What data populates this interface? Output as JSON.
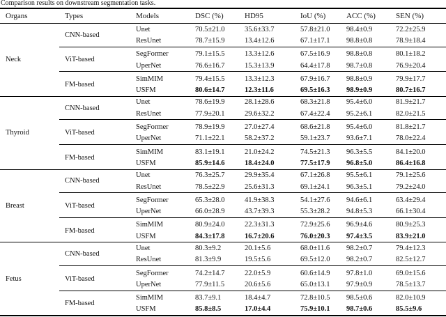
{
  "caption": "Comparison results on downstream segmentation tasks.",
  "table": {
    "headers": [
      "Organs",
      "Types",
      "Models",
      "DSC (%)",
      "HD95",
      "IoU (%)",
      "ACC (%)",
      "SEN (%)"
    ],
    "organs": [
      {
        "name": "Neck",
        "sections": [
          {
            "type": "CNN-based",
            "rows": [
              {
                "model": "Unet",
                "dsc": "70.5±21.0",
                "hd95": "35.6±33.7",
                "iou": "57.8±21.0",
                "acc": "98.4±0.9",
                "sen": "72.2±25.9"
              },
              {
                "model": "ResUnet",
                "dsc": "78.7±15.9",
                "hd95": "13.4±12.6",
                "iou": "67.1±17.1",
                "acc": "98.8±0.8",
                "sen": "78.9±18.4"
              }
            ]
          },
          {
            "type": "ViT-based",
            "rows": [
              {
                "model": "SegFormer",
                "dsc": "79.1±15.5",
                "hd95": "13.3±12.6",
                "iou": "67.5±16.9",
                "acc": "98.8±0.8",
                "sen": "80.1±18.2"
              },
              {
                "model": "UperNet",
                "dsc": "76.6±16.7",
                "hd95": "15.3±13.9",
                "iou": "64.4±17.8",
                "acc": "98.7±0.8",
                "sen": "76.9±20.4"
              }
            ]
          },
          {
            "type": "FM-based",
            "rows": [
              {
                "model": "SimMIM",
                "dsc": "79.4±15.5",
                "hd95": "13.3±12.3",
                "iou": "67.9±16.7",
                "acc": "98.8±0.9",
                "sen": "79.9±17.7"
              },
              {
                "model": "USFM",
                "dsc": "80.6±14.7",
                "hd95": "12.3±11.6",
                "iou": "69.5±16.3",
                "acc": "98.9±0.9",
                "sen": "80.7±16.7"
              }
            ]
          }
        ]
      },
      {
        "name": "Thyroid",
        "sections": [
          {
            "type": "CNN-based",
            "rows": [
              {
                "model": "Unet",
                "dsc": "78.6±19.9",
                "hd95": "28.1±28.6",
                "iou": "68.3±21.8",
                "acc": "95.4±6.0",
                "sen": "81.9±21.7"
              },
              {
                "model": "ResUnet",
                "dsc": "77.9±20.1",
                "hd95": "29.6±32.2",
                "iou": "67.4±22.4",
                "acc": "95.2±6.1",
                "sen": "82.0±21.5"
              }
            ]
          },
          {
            "type": "ViT-based",
            "rows": [
              {
                "model": "SegFormer",
                "dsc": "78.9±19.9",
                "hd95": "27.0±27.4",
                "iou": "68.6±21.8",
                "acc": "95.4±6.0",
                "sen": "81.8±21.7"
              },
              {
                "model": "UperNet",
                "dsc": "71.1±22.1",
                "hd95": "58.2±37.2",
                "iou": "59.1±23.7",
                "acc": "93.6±7.1",
                "sen": "78.0±22.4"
              }
            ]
          },
          {
            "type": "FM-based",
            "rows": [
              {
                "model": "SimMIM",
                "dsc": "83.1±19.1",
                "hd95": "21.0±24.2",
                "iou": "74.5±21.3",
                "acc": "96.3±5.5",
                "sen": "84.1±20.0"
              },
              {
                "model": "USFM",
                "dsc": "85.9±14.6",
                "hd95": "18.4±24.0",
                "iou": "77.5±17.9",
                "acc": "96.8±5.0",
                "sen": "86.4±16.8"
              }
            ]
          }
        ]
      },
      {
        "name": "Breast",
        "sections": [
          {
            "type": "CNN-based",
            "rows": [
              {
                "model": "Unet",
                "dsc": "76.3±25.7",
                "hd95": "29.9±35.4",
                "iou": "67.1±26.8",
                "acc": "95.5±6.1",
                "sen": "79.1±25.6"
              },
              {
                "model": "ResUnet",
                "dsc": "78.5±22.9",
                "hd95": "25.6±31.3",
                "iou": "69.1±24.1",
                "acc": "96.3±5.1",
                "sen": "79.2±24.0"
              }
            ]
          },
          {
            "type": "ViT-based",
            "rows": [
              {
                "model": "SegFormer",
                "dsc": "65.3±28.0",
                "hd95": "41.9±38.3",
                "iou": "54.1±27.6",
                "acc": "94.6±6.1",
                "sen": "63.4±29.4"
              },
              {
                "model": "UperNet",
                "dsc": "66.0±28.9",
                "hd95": "43.7±39.3",
                "iou": "55.3±28.2",
                "acc": "94.8±5.3",
                "sen": "66.1±30.4"
              }
            ]
          },
          {
            "type": "FM-based",
            "rows": [
              {
                "model": "SimMIM",
                "dsc": "80.9±24.0",
                "hd95": "22.3±31.3",
                "iou": "72.9±25.6",
                "acc": "96.9±4.6",
                "sen": "80.9±25.3"
              },
              {
                "model": "USFM",
                "dsc": "84.3±17.8",
                "hd95": "16.7±20.6",
                "iou": "76.0±20.3",
                "acc": "97.4±3.5",
                "sen": "83.9±21.0"
              }
            ]
          }
        ]
      },
      {
        "name": "Fetus",
        "sections": [
          {
            "type": "CNN-based",
            "rows": [
              {
                "model": "Unet",
                "dsc": "80.3±9.2",
                "hd95": "20.1±5.6",
                "iou": "68.0±11.6",
                "acc": "98.2±0.7",
                "sen": "79.4±12.3"
              },
              {
                "model": "ResUnet",
                "dsc": "81.3±9.9",
                "hd95": "19.5±5.6",
                "iou": "69.5±12.0",
                "acc": "98.2±0.7",
                "sen": "82.5±12.7"
              }
            ]
          },
          {
            "type": "ViT-based",
            "rows": [
              {
                "model": "SegFormer",
                "dsc": "74.2±14.7",
                "hd95": "22.0±5.9",
                "iou": "60.6±14.9",
                "acc": "97.8±1.0",
                "sen": "69.0±15.6"
              },
              {
                "model": "UperNet",
                "dsc": "77.9±11.5",
                "hd95": "20.6±5.6",
                "iou": "65.0±13.1",
                "acc": "97.9±0.9",
                "sen": "78.5±13.7"
              }
            ]
          },
          {
            "type": "FM-based",
            "rows": [
              {
                "model": "SimMIM",
                "dsc": "83.7±9.1",
                "hd95": "18.4±4.7",
                "iou": "72.8±10.5",
                "acc": "98.5±0.6",
                "sen": "82.0±10.9"
              },
              {
                "model": "USFM",
                "dsc": "85.8±8.5",
                "hd95": "17.0±4.4",
                "iou": "75.9±10.1",
                "acc": "98.7±0.6",
                "sen": "85.5±9.6"
              }
            ]
          }
        ]
      }
    ]
  }
}
